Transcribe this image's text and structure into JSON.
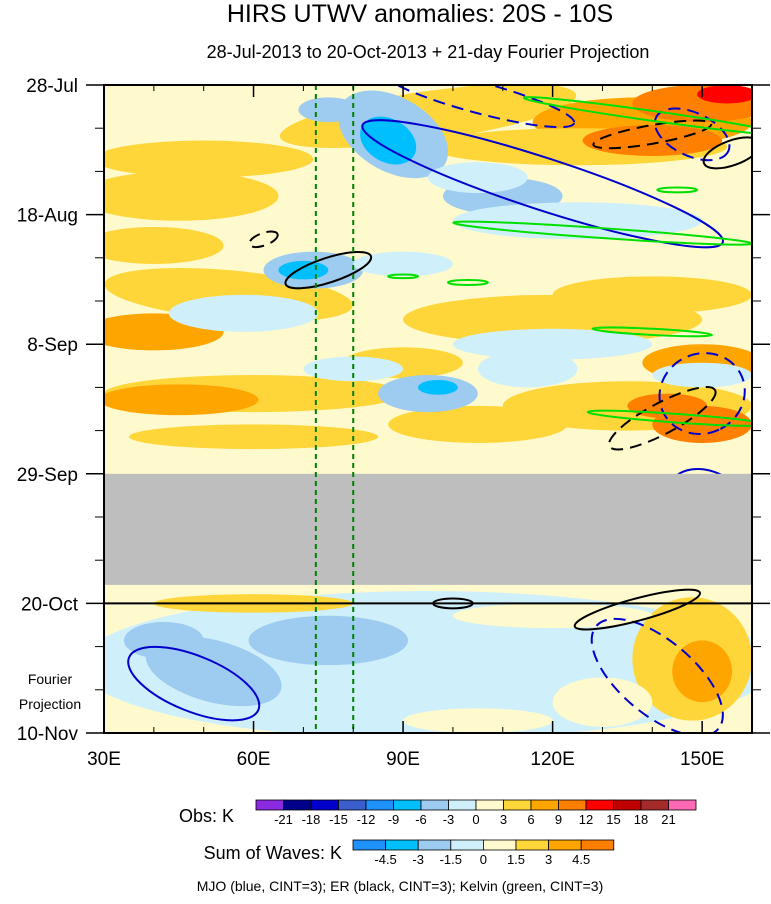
{
  "chart_data": {
    "type": "heatmap",
    "title": "HIRS UTWV anomalies: 20S - 10S",
    "subtitle": "28-Jul-2013 to 20-Oct-2013 + 21-day Fourier Projection",
    "x_axis": {
      "range": [
        30,
        160
      ],
      "ticks": [
        {
          "value": 30,
          "label": "30E"
        },
        {
          "value": 60,
          "label": "60E"
        },
        {
          "value": 90,
          "label": "90E"
        },
        {
          "value": 120,
          "label": "120E"
        },
        {
          "value": 150,
          "label": "150E"
        }
      ]
    },
    "y_axis": {
      "range_days": [
        0,
        105
      ],
      "ticks": [
        {
          "day": 0,
          "label": "28-Jul"
        },
        {
          "day": 21,
          "label": "18-Aug"
        },
        {
          "day": 42,
          "label": "8-Sep"
        },
        {
          "day": 63,
          "label": "29-Sep"
        },
        {
          "day": 84,
          "label": "20-Oct"
        },
        {
          "day": 105,
          "label": "10-Nov"
        }
      ]
    },
    "observations_end_day": 84,
    "missing_data_days": [
      63,
      81
    ],
    "projection_label": [
      "Fourier",
      "Projection"
    ],
    "reference_longitudes": [
      72.5,
      80
    ],
    "obs_colorbar": {
      "title": "Obs: K",
      "levels": [
        "-21",
        "-18",
        "-15",
        "-12",
        "-9",
        "-6",
        "-3",
        "0",
        "3",
        "6",
        "9",
        "12",
        "15",
        "18",
        "21"
      ],
      "colors": [
        "#8a2be2",
        "#00008b",
        "#0000cd",
        "#3a5fcd",
        "#1e90ff",
        "#00bfff",
        "#9ecbf0",
        "#cfeffa",
        "#fffacd",
        "#ffd63a",
        "#ffa500",
        "#ff7f00",
        "#ff0000",
        "#c00000",
        "#a52a2a",
        "#ff69b4"
      ]
    },
    "waves_colorbar": {
      "title": "Sum of Waves: K",
      "levels": [
        "-4.5",
        "-3",
        "-1.5",
        "0",
        "1.5",
        "3",
        "4.5"
      ],
      "colors": [
        "#1e90ff",
        "#00bfff",
        "#9ecbf0",
        "#cfeffa",
        "#fffacd",
        "#ffd63a",
        "#ffa500",
        "#ff7f00"
      ]
    },
    "contours": {
      "mjo": {
        "color": "#0000cd",
        "cint": 3
      },
      "er": {
        "color": "#000000",
        "cint": 3
      },
      "kelvin": {
        "color": "#00e000",
        "cint": 3
      }
    },
    "footer": "MJO (blue, CINT=3); ER (black, CINT=3); Kelvin (green, CINT=3)"
  }
}
